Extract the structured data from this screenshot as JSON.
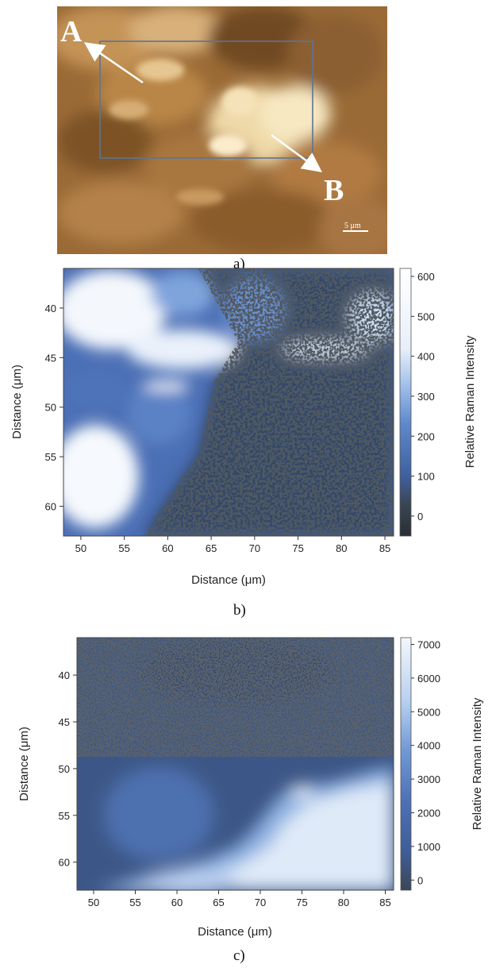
{
  "panel_labels": {
    "a": "a)",
    "b": "b)",
    "c": "c)"
  },
  "photo": {
    "point_a": "A",
    "point_b": "B",
    "scale_bar": "5 μm"
  },
  "colors": {
    "map_dark": "#2f3a4a",
    "map_mid": "#4b6fb5",
    "map_light": "#eef3fa",
    "photo_base": "#a0703a"
  },
  "chart_data": [
    {
      "type": "heatmap",
      "panel": "b",
      "xlabel": "Distance (μm)",
      "ylabel": "Distance (μm)",
      "colorbar_label": "Relative Raman Intensity",
      "x_ticks": [
        50,
        55,
        60,
        65,
        70,
        75,
        80,
        85
      ],
      "y_ticks": [
        40,
        45,
        50,
        55,
        60
      ],
      "xlim": [
        48,
        86
      ],
      "ylim": [
        36,
        63
      ],
      "colorbar_ticks": [
        0,
        100,
        200,
        300,
        400,
        500,
        600
      ],
      "colorbar_range": [
        -50,
        620
      ]
    },
    {
      "type": "heatmap",
      "panel": "c",
      "xlabel": "Distance (μm)",
      "ylabel": "Distance (μm)",
      "colorbar_label": "Relative Raman Intensity",
      "x_ticks": [
        50,
        55,
        60,
        65,
        70,
        75,
        80,
        85
      ],
      "y_ticks": [
        40,
        45,
        50,
        55,
        60
      ],
      "xlim": [
        48,
        86
      ],
      "ylim": [
        36,
        63
      ],
      "colorbar_ticks": [
        0,
        1000,
        2000,
        3000,
        4000,
        5000,
        6000,
        7000
      ],
      "colorbar_range": [
        -300,
        7200
      ]
    }
  ]
}
